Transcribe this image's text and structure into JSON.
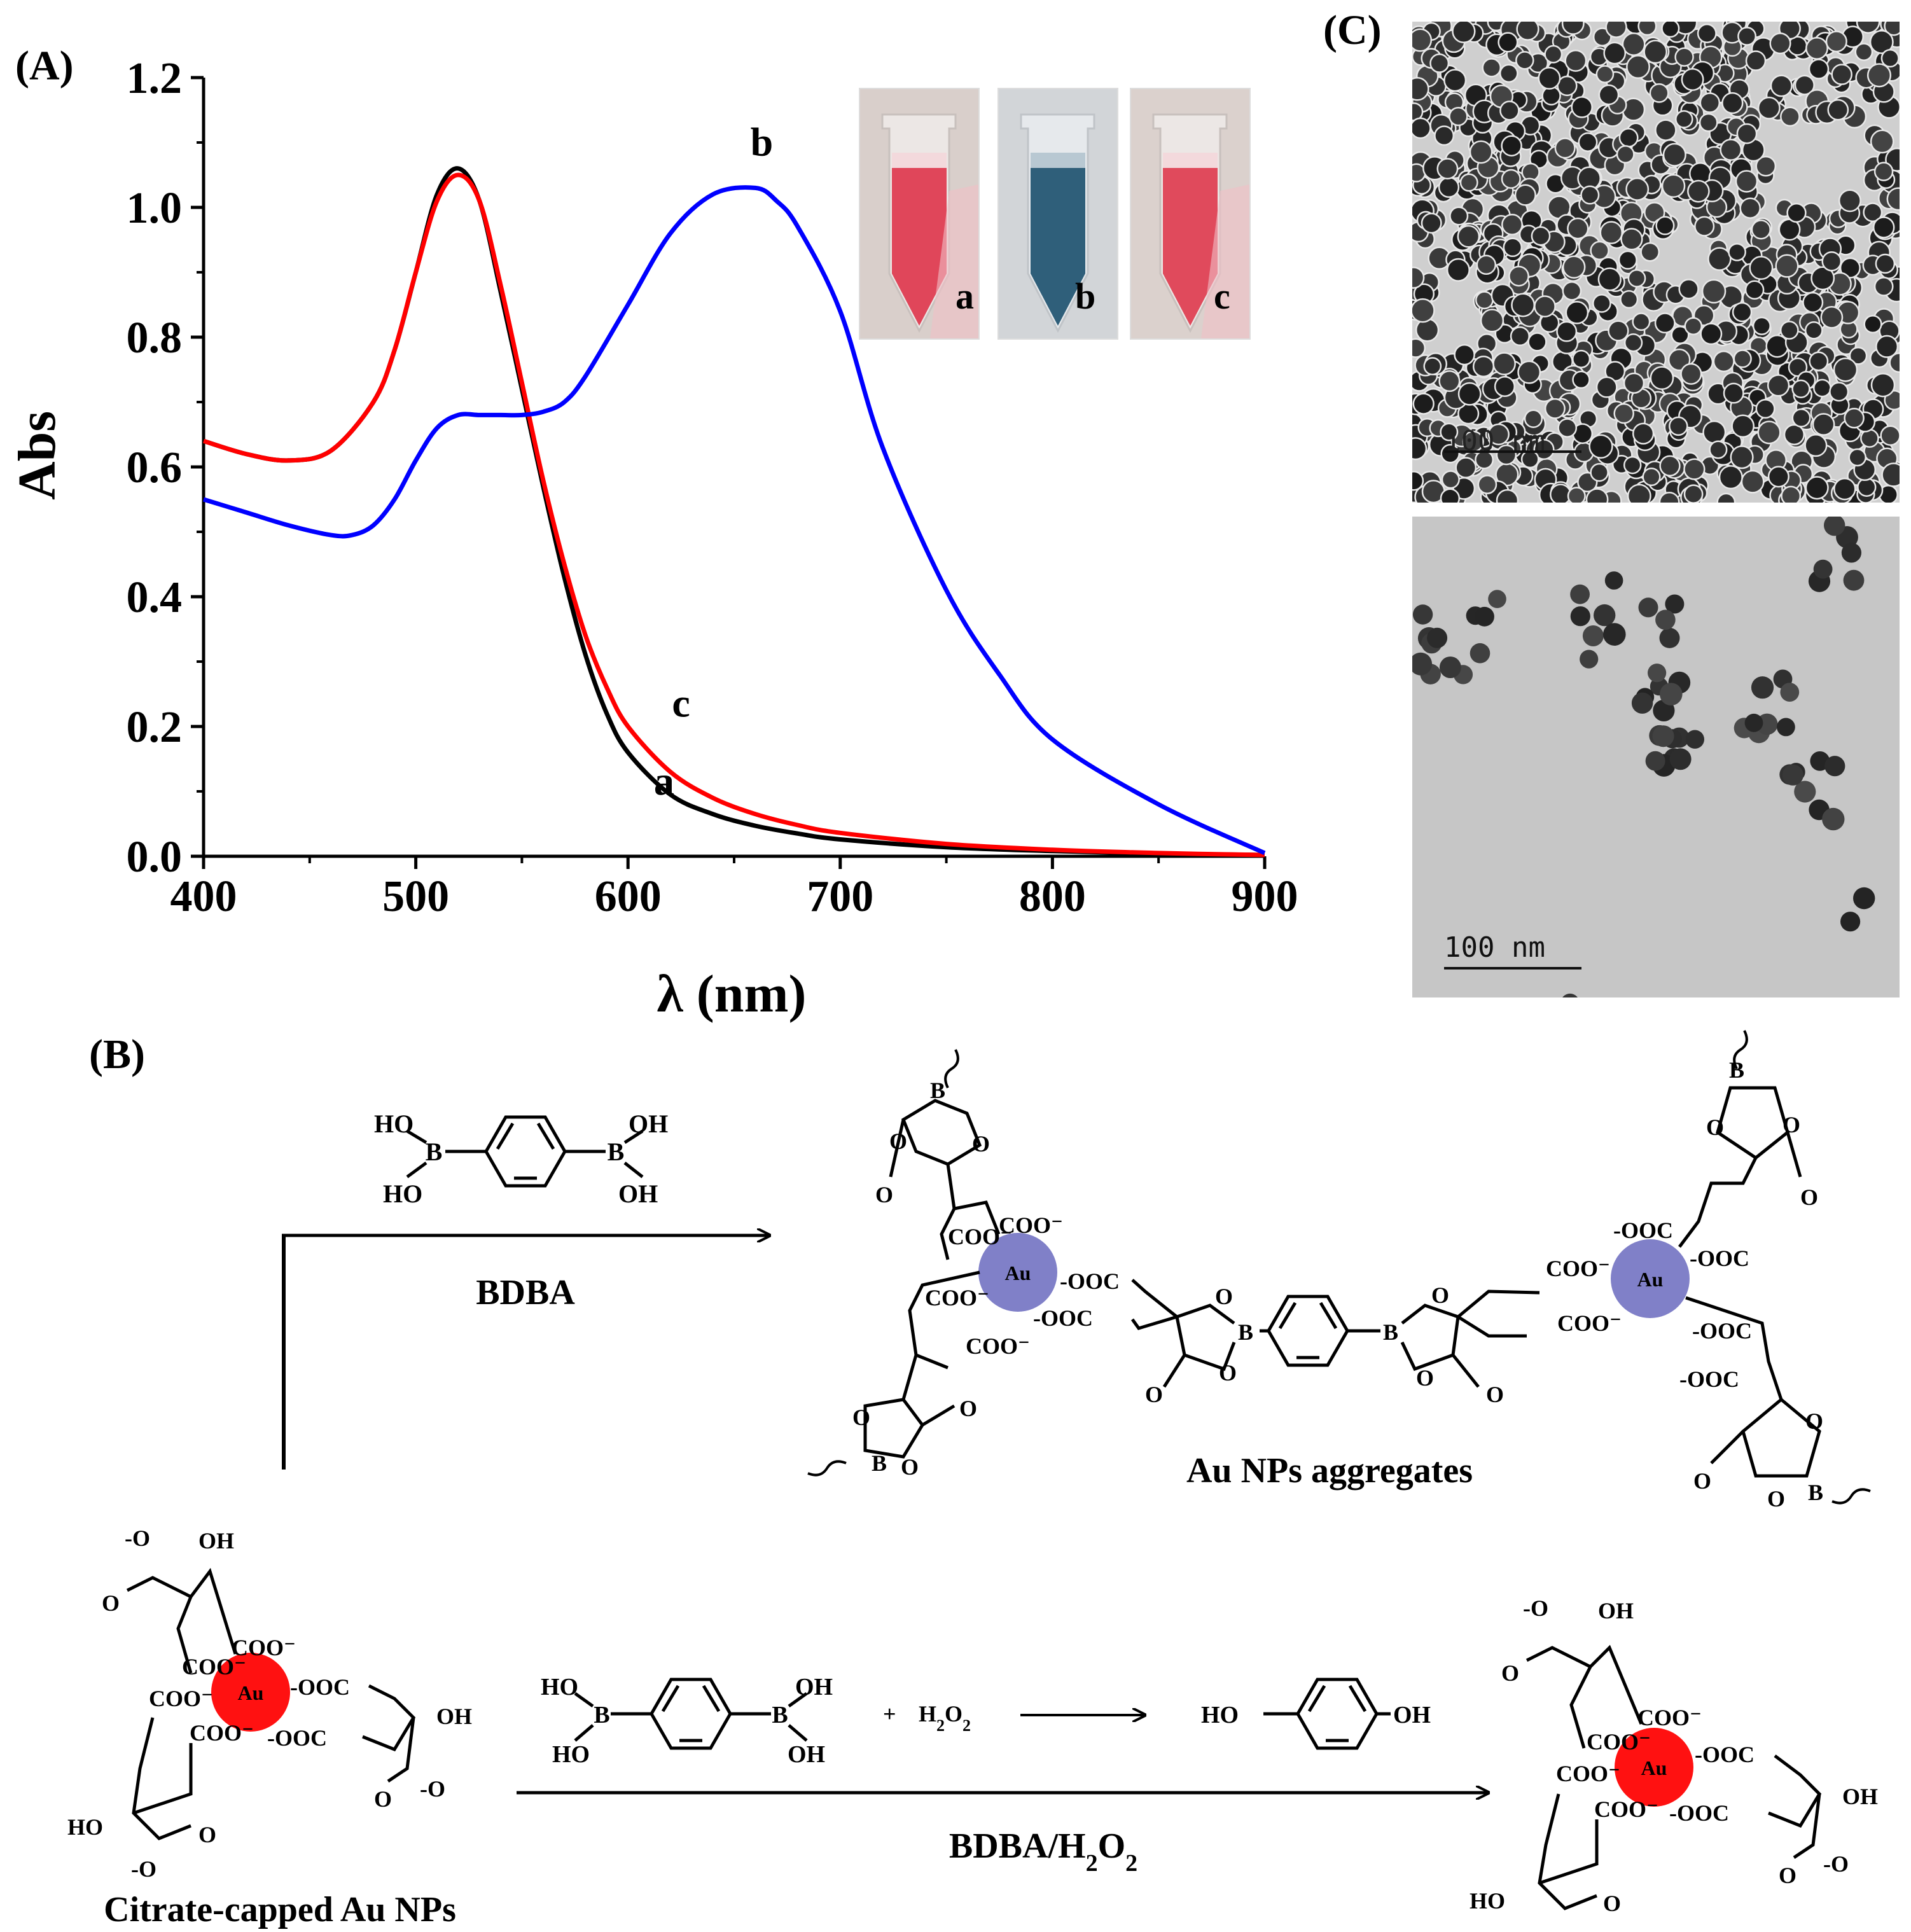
{
  "panels": {
    "a_label": "(A)",
    "b_label": "(B)",
    "c_label": "(C)"
  },
  "chart_data": {
    "type": "line",
    "title": "",
    "xlabel": "λ (nm)",
    "ylabel": "Abs",
    "xlim": [
      400,
      900
    ],
    "ylim": [
      0.0,
      1.2
    ],
    "xticks": [
      400,
      500,
      600,
      700,
      800,
      900
    ],
    "xtick_labels": [
      "400",
      "500",
      "600",
      "700",
      "800",
      "900"
    ],
    "yticks": [
      0.0,
      0.2,
      0.4,
      0.6,
      0.8,
      1.0,
      1.2
    ],
    "ytick_labels": [
      "0.0",
      "0.2",
      "0.4",
      "0.6",
      "0.8",
      "1.0",
      "1.2"
    ],
    "grid": false,
    "legend": "none",
    "series": [
      {
        "name": "a",
        "color": "#000000",
        "x": [
          400,
          420,
          440,
          460,
          480,
          490,
          500,
          510,
          520,
          530,
          540,
          550,
          560,
          570,
          580,
          590,
          600,
          620,
          640,
          660,
          680,
          700,
          750,
          800,
          850,
          900
        ],
        "y": [
          0.64,
          0.62,
          0.61,
          0.625,
          0.7,
          0.78,
          0.9,
          1.02,
          1.06,
          1.01,
          0.87,
          0.72,
          0.57,
          0.43,
          0.31,
          0.22,
          0.16,
          0.095,
          0.065,
          0.047,
          0.035,
          0.026,
          0.014,
          0.008,
          0.004,
          0.002
        ]
      },
      {
        "name": "c",
        "color": "#ff0000",
        "x": [
          400,
          420,
          440,
          460,
          480,
          490,
          500,
          510,
          520,
          530,
          540,
          550,
          560,
          570,
          580,
          590,
          600,
          620,
          640,
          660,
          680,
          700,
          750,
          800,
          850,
          900
        ],
        "y": [
          0.64,
          0.62,
          0.61,
          0.625,
          0.7,
          0.78,
          0.9,
          1.01,
          1.05,
          1.01,
          0.88,
          0.73,
          0.58,
          0.45,
          0.34,
          0.26,
          0.2,
          0.13,
          0.09,
          0.065,
          0.048,
          0.036,
          0.019,
          0.01,
          0.005,
          0.002
        ]
      },
      {
        "name": "b",
        "color": "#0000ff",
        "x": [
          400,
          420,
          440,
          460,
          470,
          480,
          490,
          500,
          510,
          520,
          530,
          540,
          550,
          560,
          570,
          580,
          600,
          620,
          640,
          660,
          670,
          680,
          700,
          720,
          750,
          775,
          800,
          850,
          900
        ],
        "y": [
          0.55,
          0.53,
          0.51,
          0.495,
          0.495,
          0.51,
          0.55,
          0.61,
          0.66,
          0.68,
          0.68,
          0.68,
          0.68,
          0.685,
          0.7,
          0.74,
          0.85,
          0.96,
          1.02,
          1.03,
          1.01,
          0.97,
          0.84,
          0.63,
          0.41,
          0.28,
          0.18,
          0.08,
          0.005
        ]
      }
    ],
    "curve_labels": [
      {
        "text": "a",
        "x": 617,
        "y": 0.095
      },
      {
        "text": "b",
        "x": 663,
        "y": 1.08
      },
      {
        "text": "c",
        "x": 625,
        "y": 0.215
      }
    ],
    "inset_vial_labels": [
      "a",
      "b",
      "c"
    ]
  },
  "scale_bars": {
    "top": "100 nm",
    "bottom": "100 nm"
  },
  "scheme": {
    "bdba_label": "BDBA",
    "aggregates_label": "Au NPs aggregates",
    "citrate_label": "Citrate-capped Au NPs",
    "bdba_h2o2_label": "BDBA/H2O2",
    "au": "Au",
    "ho": "HO",
    "oh": "OH",
    "b": "B",
    "o": "O",
    "coo_minus": "COO⁻",
    "ooc_minus": "-OOC",
    "o_minus": "-O",
    "plus": "+",
    "h2o2": "H2O2"
  },
  "colors": {
    "au_aggregated": "#8080c8",
    "au_dispersed": "#ff1111",
    "vial_red": "#e0465a",
    "vial_blue": "#2f5f7a"
  }
}
